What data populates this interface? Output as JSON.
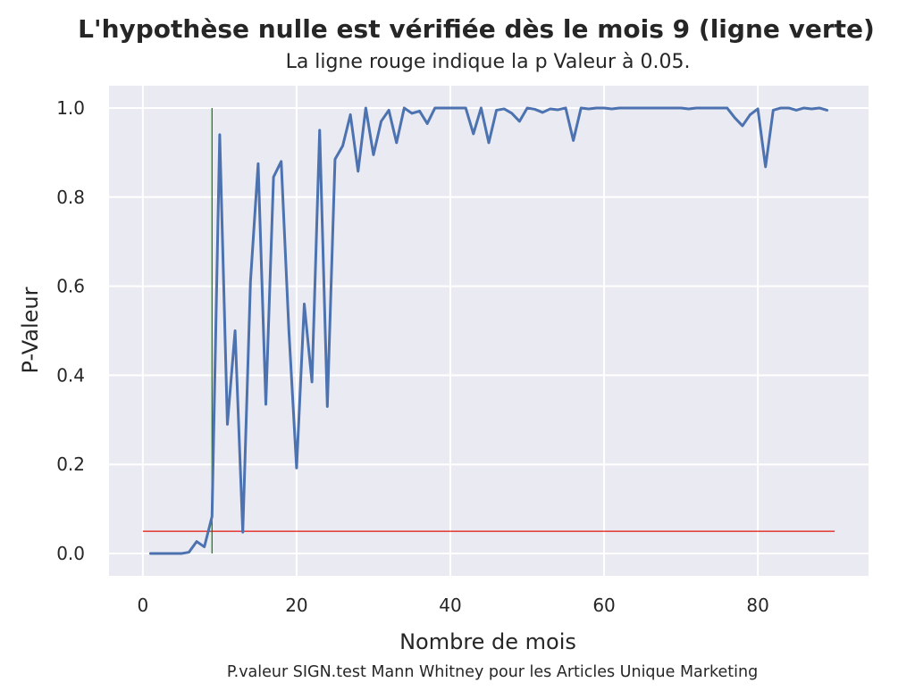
{
  "chart_data": {
    "type": "line",
    "title": "L'hypothèse nulle est vérifiée dès le mois 9 (ligne verte)",
    "subtitle": "La ligne rouge indique la p Valeur à 0.05.",
    "xlabel": "Nombre de mois",
    "ylabel": "P-Valeur",
    "caption": "P.valeur SIGN.test Mann Whitney pour les Articles Unique Marketing",
    "xlim": [
      -4.4,
      94.4
    ],
    "ylim": [
      -0.05,
      1.05
    ],
    "xticks": [
      0,
      20,
      40,
      60,
      80
    ],
    "xtick_labels": [
      "0",
      "20",
      "40",
      "60",
      "80"
    ],
    "yticks": [
      0.0,
      0.2,
      0.4,
      0.6,
      0.8,
      1.0
    ],
    "ytick_labels": [
      "0.0",
      "0.2",
      "0.4",
      "0.6",
      "0.8",
      "1.0"
    ],
    "grid": true,
    "colors": {
      "background": "#eaeaf2",
      "grid": "#ffffff",
      "series": "#4c72b0",
      "threshold": "#e3120b",
      "vertical": "#008000",
      "text": "#262626"
    },
    "series": [
      {
        "x": [
          1,
          2,
          3,
          4,
          5,
          6,
          7,
          8,
          9,
          10,
          11,
          12,
          13,
          14,
          15,
          16,
          17,
          18,
          19,
          20,
          21,
          22,
          23,
          24,
          25,
          26,
          27,
          28,
          29,
          30,
          31,
          32,
          33,
          34,
          35,
          36,
          37,
          38,
          39,
          40,
          41,
          42,
          43,
          44,
          45,
          46,
          47,
          48,
          49,
          50,
          51,
          52,
          53,
          54,
          55,
          56,
          57,
          58,
          59,
          60,
          61,
          62,
          63,
          64,
          65,
          66,
          67,
          68,
          69,
          70,
          71,
          72,
          73,
          74,
          75,
          76,
          77,
          78,
          79,
          80,
          81,
          82,
          83,
          84,
          85,
          86,
          87,
          88,
          89
        ],
        "values": [
          0.0,
          0.0,
          0.0,
          0.0,
          0.0,
          0.003,
          0.027,
          0.015,
          0.083,
          0.94,
          0.29,
          0.5,
          0.048,
          0.61,
          0.875,
          0.335,
          0.845,
          0.88,
          0.5,
          0.192,
          0.56,
          0.385,
          0.95,
          0.33,
          0.885,
          0.915,
          0.985,
          0.858,
          1.0,
          0.895,
          0.97,
          0.995,
          0.922,
          1.0,
          0.988,
          0.993,
          0.965,
          1.0,
          1.0,
          1.0,
          1.0,
          1.0,
          0.942,
          1.0,
          0.922,
          0.995,
          0.998,
          0.988,
          0.97,
          1.0,
          0.997,
          0.99,
          0.998,
          0.996,
          1.0,
          0.927,
          1.0,
          0.998,
          1.0,
          1.0,
          0.998,
          1.0,
          1.0,
          1.0,
          1.0,
          1.0,
          1.0,
          1.0,
          1.0,
          1.0,
          0.998,
          1.0,
          1.0,
          1.0,
          1.0,
          1.0,
          0.978,
          0.96,
          0.985,
          0.998,
          0.868,
          0.995,
          1.0,
          1.0,
          0.995,
          1.0,
          0.998,
          1.0,
          0.995
        ]
      }
    ],
    "hlines": [
      {
        "y": 0.05,
        "xmin": 0,
        "xmax": 90,
        "color": "#e3120b"
      }
    ],
    "vlines": [
      {
        "x": 9,
        "ymin": 0.0,
        "ymax": 1.0,
        "color": "#008000"
      }
    ]
  }
}
